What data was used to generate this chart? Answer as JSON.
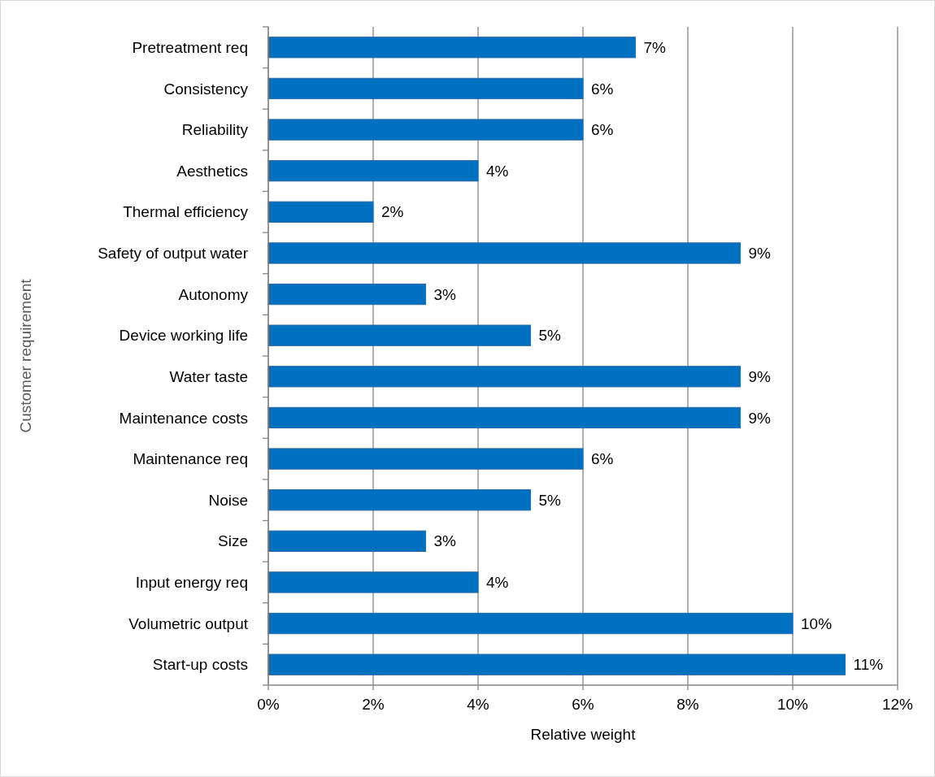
{
  "chart_data": {
    "type": "bar",
    "orientation": "horizontal",
    "xlabel": "Relative weight",
    "ylabel": "Customer requirement",
    "categories": [
      "Pretreatment req",
      "Consistency",
      "Reliability",
      "Aesthetics",
      "Thermal efficiency",
      "Safety of output water",
      "Autonomy",
      "Device working life",
      "Water taste",
      "Maintenance costs",
      "Maintenance req",
      "Noise",
      "Size",
      "Input energy req",
      "Volumetric output",
      "Start-up costs"
    ],
    "values": [
      7,
      6,
      6,
      4,
      2,
      9,
      3,
      5,
      9,
      9,
      6,
      5,
      3,
      4,
      10,
      11
    ],
    "value_labels": [
      "7%",
      "6%",
      "6%",
      "4%",
      "2%",
      "9%",
      "3%",
      "5%",
      "9%",
      "9%",
      "6%",
      "5%",
      "3%",
      "4%",
      "10%",
      "11%"
    ],
    "color": "#0070c0",
    "xlim": [
      0,
      12
    ],
    "xticks": [
      {
        "value": 0,
        "label": "0%"
      },
      {
        "value": 2,
        "label": "2%"
      },
      {
        "value": 4,
        "label": "4%"
      },
      {
        "value": 6,
        "label": "6%"
      },
      {
        "value": 8,
        "label": "8%"
      },
      {
        "value": 10,
        "label": "10%"
      },
      {
        "value": 12,
        "label": "12%"
      }
    ],
    "grid": "x"
  }
}
